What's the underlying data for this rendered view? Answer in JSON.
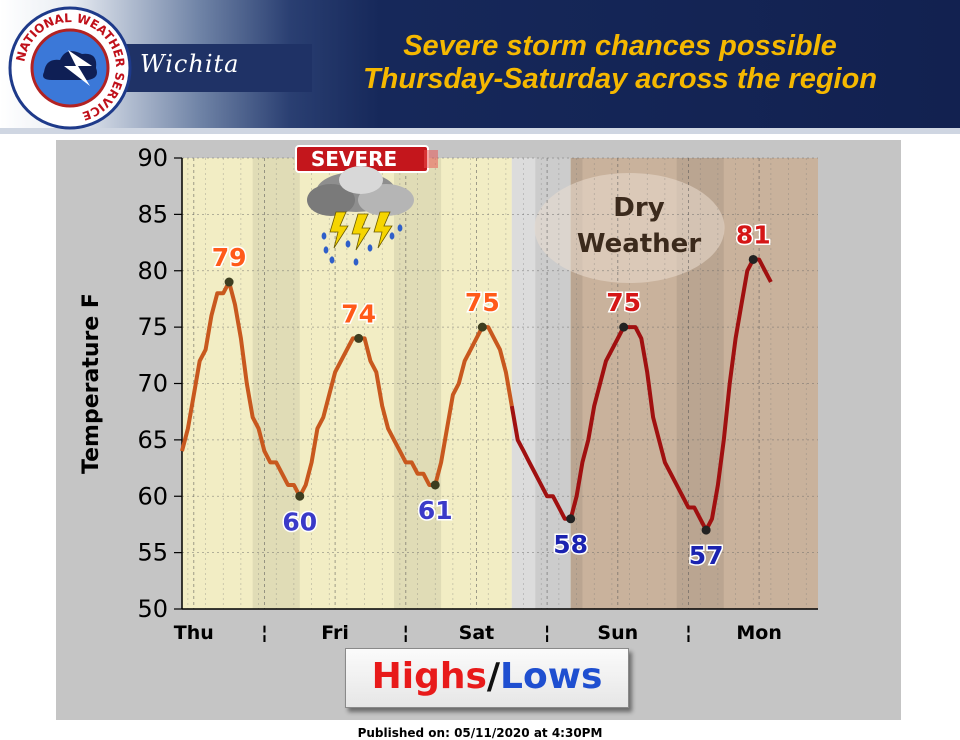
{
  "header": {
    "office": "Wichita",
    "logo_text": "NATIONAL WEATHER SERVICE",
    "title_line1": "Severe storm chances possible",
    "title_line2": "Thursday-Saturday  across the region"
  },
  "colors": {
    "title": "#f5b800",
    "high_label": "#ff5a1a",
    "low_label": "#3a3ac8",
    "trend_line_past": "#c8581e",
    "trend_line_future": "#a01010",
    "band_severe": "#f2edc4",
    "band_transition": "#dcdcdc",
    "band_dry": "#c9b29c"
  },
  "chart_data": {
    "type": "line",
    "ylabel": "Temperature F",
    "ylim": [
      50,
      90
    ],
    "yticks": [
      50,
      55,
      60,
      65,
      70,
      75,
      80,
      85,
      90
    ],
    "xticks": [
      {
        "t": 1,
        "label": "Thu"
      },
      {
        "t": 7,
        "label": "¦"
      },
      {
        "t": 13,
        "label": "Fri"
      },
      {
        "t": 19,
        "label": "¦"
      },
      {
        "t": 25,
        "label": "Sat"
      },
      {
        "t": 31,
        "label": "¦"
      },
      {
        "t": 37,
        "label": "Sun"
      },
      {
        "t": 43,
        "label": "¦"
      },
      {
        "t": 49,
        "label": "Mon"
      }
    ],
    "xlim": [
      0,
      54
    ],
    "series": [
      {
        "points": [
          [
            0,
            64
          ],
          [
            0.5,
            66
          ],
          [
            1,
            69
          ],
          [
            1.5,
            72
          ],
          [
            2,
            73
          ],
          [
            2.5,
            76
          ],
          [
            3,
            78
          ],
          [
            3.5,
            78
          ],
          [
            4,
            79
          ],
          [
            4.5,
            77
          ],
          [
            5,
            74
          ],
          [
            5.5,
            70
          ],
          [
            6,
            67
          ],
          [
            6.5,
            66
          ],
          [
            7,
            64
          ],
          [
            7.5,
            63
          ],
          [
            8,
            63
          ],
          [
            8.5,
            62
          ],
          [
            9,
            61
          ],
          [
            9.5,
            61
          ],
          [
            10,
            60
          ],
          [
            10.5,
            61
          ],
          [
            11,
            63
          ],
          [
            11.5,
            66
          ],
          [
            12,
            67
          ],
          [
            12.5,
            69
          ],
          [
            13,
            71
          ],
          [
            13.5,
            72
          ],
          [
            14,
            73
          ],
          [
            14.5,
            74
          ],
          [
            15,
            74
          ],
          [
            15.5,
            74
          ],
          [
            16,
            72
          ],
          [
            16.5,
            71
          ],
          [
            17,
            68
          ],
          [
            17.5,
            66
          ],
          [
            18,
            65
          ],
          [
            18.5,
            64
          ],
          [
            19,
            63
          ],
          [
            19.5,
            63
          ],
          [
            20,
            62
          ],
          [
            20.5,
            62
          ],
          [
            21,
            61
          ],
          [
            21.5,
            61
          ],
          [
            22,
            63
          ],
          [
            22.5,
            66
          ],
          [
            23,
            69
          ],
          [
            23.5,
            70
          ],
          [
            24,
            72
          ],
          [
            24.5,
            73
          ],
          [
            25,
            74
          ],
          [
            25.5,
            75
          ],
          [
            26,
            75
          ],
          [
            26.5,
            74
          ],
          [
            27,
            73
          ],
          [
            27.5,
            71
          ],
          [
            28,
            68
          ],
          [
            28.5,
            65
          ],
          [
            29,
            64
          ],
          [
            29.5,
            63
          ],
          [
            30,
            62
          ],
          [
            30.5,
            61
          ],
          [
            31,
            60
          ],
          [
            31.5,
            60
          ],
          [
            32,
            59
          ],
          [
            32.5,
            58
          ],
          [
            33,
            58
          ],
          [
            33.5,
            60
          ],
          [
            34,
            63
          ],
          [
            34.5,
            65
          ],
          [
            35,
            68
          ],
          [
            35.5,
            70
          ],
          [
            36,
            72
          ],
          [
            36.5,
            73
          ],
          [
            37,
            74
          ],
          [
            37.5,
            75
          ],
          [
            38,
            75
          ],
          [
            38.5,
            75
          ],
          [
            39,
            74
          ],
          [
            39.5,
            71
          ],
          [
            40,
            67
          ],
          [
            40.5,
            65
          ],
          [
            41,
            63
          ],
          [
            41.5,
            62
          ],
          [
            42,
            61
          ],
          [
            42.5,
            60
          ],
          [
            43,
            59
          ],
          [
            43.5,
            59
          ],
          [
            44,
            58
          ],
          [
            44.5,
            57
          ],
          [
            45,
            58
          ],
          [
            45.5,
            61
          ],
          [
            46,
            65
          ],
          [
            46.5,
            70
          ],
          [
            47,
            74
          ],
          [
            47.5,
            77
          ],
          [
            48,
            80
          ],
          [
            48.5,
            81
          ],
          [
            49,
            81
          ],
          [
            49.5,
            80
          ],
          [
            50,
            79
          ]
        ]
      }
    ],
    "extremes": [
      {
        "t": 4,
        "value": 79,
        "kind": "high",
        "label": "79"
      },
      {
        "t": 10,
        "value": 60,
        "kind": "low",
        "label": "60"
      },
      {
        "t": 15,
        "value": 74,
        "kind": "high",
        "label": "74"
      },
      {
        "t": 21.5,
        "value": 61,
        "kind": "low",
        "label": "61"
      },
      {
        "t": 25.5,
        "value": 75,
        "kind": "high",
        "label": "75"
      },
      {
        "t": 33,
        "value": 58,
        "kind": "low",
        "label": "58"
      },
      {
        "t": 37.5,
        "value": 75,
        "kind": "high",
        "label": "75"
      },
      {
        "t": 44.5,
        "value": 57,
        "kind": "low",
        "label": "57"
      },
      {
        "t": 48.5,
        "value": 81,
        "kind": "high",
        "label": "81"
      }
    ],
    "future_from_t": 28,
    "bands": [
      {
        "from": 0,
        "to": 28,
        "kind": "severe"
      },
      {
        "from": 28,
        "to": 33,
        "kind": "transition"
      },
      {
        "from": 33,
        "to": 54,
        "kind": "dry"
      }
    ],
    "annotations": {
      "severe_badge": "SEVERE",
      "dry_weather_line1": "Dry",
      "dry_weather_line2": "Weather"
    }
  },
  "legend": {
    "highs": "Highs",
    "separator": "/",
    "lows": "Lows"
  },
  "footer": "Published on: 05/11/2020 at 4:30PM"
}
